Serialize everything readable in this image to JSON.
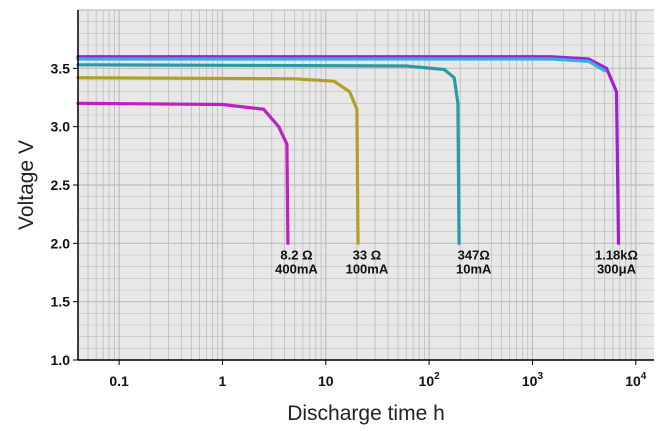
{
  "chart_data": {
    "type": "line",
    "title": "",
    "xlabel": "Discharge time h",
    "ylabel": "Voltage V",
    "xscale": "log",
    "xlim": [
      0.04,
      15000
    ],
    "ylim": [
      1.0,
      4.0
    ],
    "grid": true,
    "colors": {
      "background": "#e8e8e8",
      "grid": "#bdbdbd",
      "axis": "#000000"
    },
    "y_ticks": [
      {
        "value": 1.0,
        "label": "1.0"
      },
      {
        "value": 1.5,
        "label": "1.5"
      },
      {
        "value": 2.0,
        "label": "2.0"
      },
      {
        "value": 2.5,
        "label": "2.5"
      },
      {
        "value": 3.0,
        "label": "3.0"
      },
      {
        "value": 3.5,
        "label": "3.5"
      }
    ],
    "x_ticks": [
      {
        "value": 0.1,
        "base": "0.1",
        "exp": ""
      },
      {
        "value": 1,
        "base": "1",
        "exp": ""
      },
      {
        "value": 10,
        "base": "10",
        "exp": ""
      },
      {
        "value": 100,
        "base": "10",
        "exp": "2"
      },
      {
        "value": 1000,
        "base": "10",
        "exp": "3"
      },
      {
        "value": 10000,
        "base": "10",
        "exp": "4"
      }
    ],
    "series": [
      {
        "color": "#c020c0",
        "points": [
          [
            0.04,
            3.2
          ],
          [
            1.0,
            3.19
          ],
          [
            2.5,
            3.15
          ],
          [
            3.5,
            3.0
          ],
          [
            4.2,
            2.85
          ],
          [
            4.3,
            2.0
          ]
        ]
      },
      {
        "color": "#b0a028",
        "points": [
          [
            0.04,
            3.42
          ],
          [
            5.0,
            3.41
          ],
          [
            12.0,
            3.39
          ],
          [
            17.0,
            3.3
          ],
          [
            20.0,
            3.15
          ],
          [
            20.5,
            2.0
          ]
        ]
      },
      {
        "color": "#2a9aa8",
        "points": [
          [
            0.04,
            3.53
          ],
          [
            60.0,
            3.52
          ],
          [
            140.0,
            3.49
          ],
          [
            175.0,
            3.42
          ],
          [
            190.0,
            3.2
          ],
          [
            195.0,
            2.0
          ]
        ]
      },
      {
        "color": "#a020d0",
        "points": [
          [
            0.04,
            3.6
          ],
          [
            1500.0,
            3.6
          ],
          [
            3500.0,
            3.58
          ],
          [
            5200.0,
            3.5
          ],
          [
            6500.0,
            3.3
          ],
          [
            6800.0,
            2.0
          ]
        ]
      },
      {
        "color": "#30b0e0",
        "points": [
          [
            0.04,
            3.58
          ],
          [
            1500.0,
            3.58
          ],
          [
            3500.0,
            3.56
          ],
          [
            5000.0,
            3.48
          ]
        ]
      }
    ],
    "annotations": [
      {
        "x": 5.2,
        "y": 2.0,
        "line1": "8.2 Ω",
        "line2": "400mA"
      },
      {
        "x": 25,
        "y": 2.0,
        "line1": "33 Ω",
        "line2": "100mA"
      },
      {
        "x": 270,
        "y": 2.0,
        "line1": "347Ω",
        "line2": "10mA"
      },
      {
        "x": 6500,
        "y": 2.0,
        "line1": "1.18kΩ",
        "line2": "300μA"
      }
    ]
  }
}
